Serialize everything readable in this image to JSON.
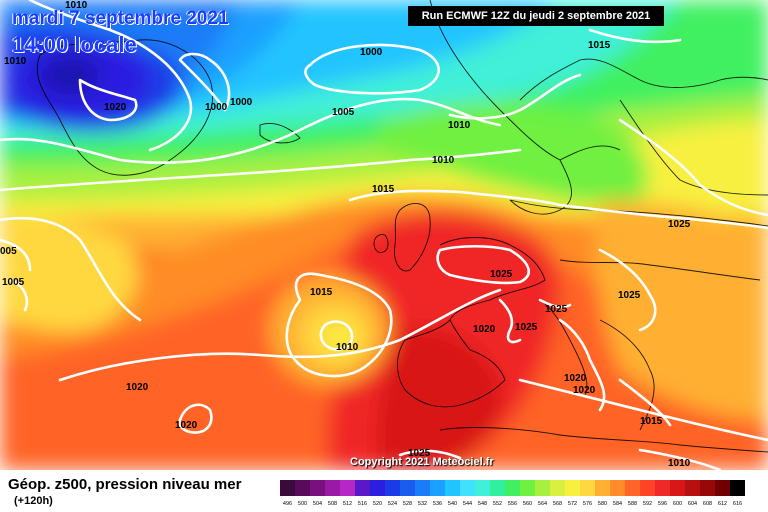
{
  "header": {
    "date": "mardi 7 septembre 2021",
    "time": "14:00 locale",
    "run": "Run ECMWF 12Z du jeudi 2 septembre 2021"
  },
  "footer": {
    "title": "Géop. z500, pression niveau mer",
    "lead": "(+120h)",
    "copyright": "Copyright 2021 Meteociel.fr"
  },
  "legend": {
    "ticks": [
      "496",
      "500",
      "504",
      "508",
      "512",
      "516",
      "520",
      "524",
      "528",
      "532",
      "536",
      "540",
      "544",
      "548",
      "552",
      "556",
      "560",
      "564",
      "568",
      "572",
      "576",
      "580",
      "584",
      "588",
      "592",
      "596",
      "600",
      "604",
      "608",
      "612",
      "616"
    ],
    "colors": [
      "#3a0a3a",
      "#5a0a5a",
      "#7a1080",
      "#9a1aa8",
      "#b428c8",
      "#5a18c8",
      "#2c1ee0",
      "#1a3ce8",
      "#1a5cf0",
      "#1a7cf8",
      "#1aa0ff",
      "#20c4ff",
      "#40e0ff",
      "#40f0d8",
      "#30f0a0",
      "#40f060",
      "#70f040",
      "#a8f040",
      "#d8f040",
      "#f8f040",
      "#ffd840",
      "#ffb030",
      "#ff8c28",
      "#ff6428",
      "#ff4428",
      "#f02828",
      "#d81818",
      "#b81010",
      "#980808",
      "#700000",
      "#000000"
    ]
  },
  "isobars": [
    {
      "label": "1010"
    },
    {
      "label": "1010"
    },
    {
      "label": "1020"
    },
    {
      "label": "1000"
    },
    {
      "label": "1000"
    },
    {
      "label": "1005"
    },
    {
      "label": "1000"
    },
    {
      "label": "1015"
    },
    {
      "label": "1010"
    },
    {
      "label": "1015"
    },
    {
      "label": "1010"
    },
    {
      "label": "005"
    },
    {
      "label": "1005"
    },
    {
      "label": "1015"
    },
    {
      "label": "1010"
    },
    {
      "label": "1025"
    },
    {
      "label": "1025"
    },
    {
      "label": "1025"
    },
    {
      "label": "1025"
    },
    {
      "label": "1020"
    },
    {
      "label": "1025"
    },
    {
      "label": "1020"
    },
    {
      "label": "1020"
    },
    {
      "label": "1020"
    },
    {
      "label": "1020"
    },
    {
      "label": "1025"
    },
    {
      "label": "1015"
    },
    {
      "label": "1010"
    }
  ]
}
